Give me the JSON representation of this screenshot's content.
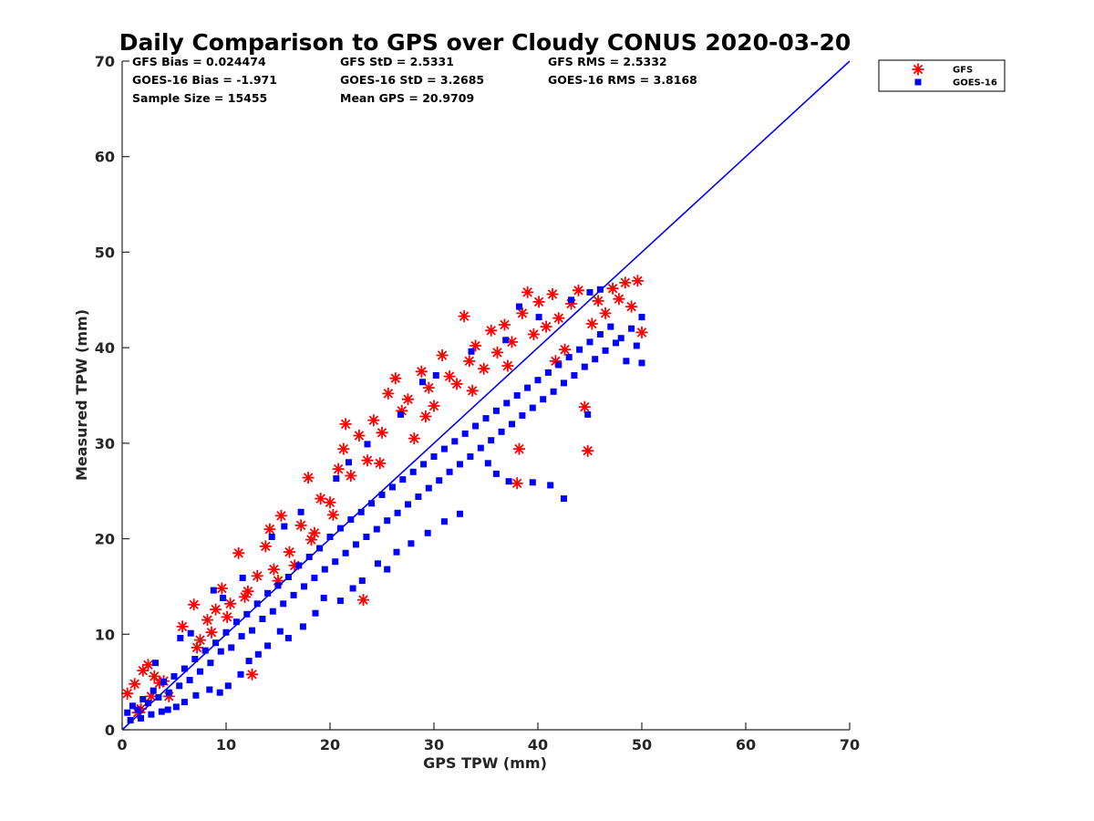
{
  "chart_data": {
    "type": "scatter",
    "title": "Daily Comparison to GPS over Cloudy CONUS 2020-03-20",
    "xlabel": "GPS TPW (mm)",
    "ylabel": "Measured TPW (mm)",
    "xlim": [
      0,
      70
    ],
    "ylim": [
      0,
      70
    ],
    "xticks": [
      "0",
      "10",
      "20",
      "30",
      "40",
      "50",
      "60",
      "70"
    ],
    "yticks": [
      "0",
      "10",
      "20",
      "30",
      "40",
      "50",
      "60",
      "70"
    ],
    "grid": false,
    "legend_position": "outside-top-right",
    "stats": [
      "GFS Bias = 0.024474",
      "GOES-16 Bias = -1.971",
      "Sample Size = 15455",
      "GFS StD = 2.5331",
      "GOES-16 StD = 3.2685",
      "Mean GPS = 20.9709",
      "GFS RMS = 2.5332",
      "GOES-16 RMS = 3.8168"
    ],
    "reference_line": {
      "color": "#0000ff",
      "points": [
        [
          0,
          0
        ],
        [
          70,
          70
        ]
      ]
    },
    "series": [
      {
        "name": "GFS",
        "marker": "asterisk",
        "color": "#ff0000",
        "points": [
          [
            0.5,
            3.8
          ],
          [
            1.2,
            4.8
          ],
          [
            2.0,
            6.2
          ],
          [
            2.5,
            6.8
          ],
          [
            1.8,
            2.2
          ],
          [
            3.1,
            5.6
          ],
          [
            4.0,
            5.1
          ],
          [
            4.5,
            3.5
          ],
          [
            5.8,
            10.8
          ],
          [
            6.9,
            13.1
          ],
          [
            7.5,
            9.4
          ],
          [
            8.2,
            11.5
          ],
          [
            9.0,
            12.6
          ],
          [
            9.6,
            14.8
          ],
          [
            10.4,
            13.2
          ],
          [
            11.2,
            18.5
          ],
          [
            12.1,
            14.5
          ],
          [
            12.5,
            5.8
          ],
          [
            13.0,
            16.1
          ],
          [
            13.8,
            19.2
          ],
          [
            14.2,
            21.0
          ],
          [
            15.0,
            15.6
          ],
          [
            15.3,
            22.4
          ],
          [
            16.1,
            18.6
          ],
          [
            17.2,
            21.4
          ],
          [
            17.9,
            26.4
          ],
          [
            18.5,
            20.6
          ],
          [
            19.1,
            24.2
          ],
          [
            20.0,
            23.8
          ],
          [
            20.8,
            27.3
          ],
          [
            21.5,
            32.0
          ],
          [
            21.3,
            29.4
          ],
          [
            22.0,
            26.6
          ],
          [
            22.8,
            30.8
          ],
          [
            23.2,
            13.6
          ],
          [
            23.6,
            28.2
          ],
          [
            24.2,
            32.4
          ],
          [
            25.0,
            31.1
          ],
          [
            25.6,
            35.2
          ],
          [
            26.3,
            36.8
          ],
          [
            26.9,
            33.4
          ],
          [
            27.5,
            34.6
          ],
          [
            28.1,
            30.5
          ],
          [
            28.8,
            37.5
          ],
          [
            29.5,
            35.8
          ],
          [
            30.0,
            33.9
          ],
          [
            30.8,
            39.2
          ],
          [
            31.5,
            37.0
          ],
          [
            32.2,
            36.2
          ],
          [
            32.9,
            43.3
          ],
          [
            33.4,
            38.6
          ],
          [
            34.0,
            40.2
          ],
          [
            34.8,
            37.8
          ],
          [
            35.5,
            41.8
          ],
          [
            36.1,
            39.5
          ],
          [
            36.8,
            42.4
          ],
          [
            37.5,
            40.6
          ],
          [
            38.0,
            25.8
          ],
          [
            38.2,
            29.4
          ],
          [
            38.5,
            43.6
          ],
          [
            39.0,
            45.8
          ],
          [
            39.6,
            41.4
          ],
          [
            40.1,
            44.8
          ],
          [
            40.8,
            42.2
          ],
          [
            41.4,
            45.6
          ],
          [
            42.0,
            43.1
          ],
          [
            42.6,
            39.8
          ],
          [
            43.2,
            44.6
          ],
          [
            43.9,
            46.0
          ],
          [
            44.5,
            33.8
          ],
          [
            44.8,
            29.2
          ],
          [
            45.2,
            42.5
          ],
          [
            45.8,
            44.9
          ],
          [
            46.5,
            43.6
          ],
          [
            47.2,
            46.2
          ],
          [
            47.8,
            45.1
          ],
          [
            48.4,
            46.8
          ],
          [
            49.0,
            44.3
          ],
          [
            49.6,
            47.0
          ],
          [
            50.0,
            41.6
          ],
          [
            20.3,
            22.5
          ],
          [
            24.8,
            27.9
          ],
          [
            29.2,
            32.8
          ],
          [
            33.7,
            35.5
          ],
          [
            37.1,
            38.1
          ],
          [
            41.7,
            38.6
          ],
          [
            18.2,
            19.9
          ],
          [
            16.6,
            17.2
          ],
          [
            14.6,
            16.8
          ],
          [
            11.8,
            13.9
          ],
          [
            10.1,
            11.8
          ],
          [
            8.6,
            10.2
          ],
          [
            7.2,
            8.6
          ],
          [
            3.6,
            4.9
          ],
          [
            2.8,
            3.5
          ],
          [
            1.5,
            1.8
          ]
        ]
      },
      {
        "name": "GOES-16",
        "marker": "square",
        "color": "#0000ff",
        "points": [
          [
            0.5,
            1.8
          ],
          [
            1.0,
            2.5
          ],
          [
            1.5,
            2.1
          ],
          [
            2.0,
            3.2
          ],
          [
            2.5,
            2.8
          ],
          [
            3.0,
            4.1
          ],
          [
            3.5,
            3.4
          ],
          [
            4.0,
            5.0
          ],
          [
            4.5,
            3.9
          ],
          [
            5.0,
            5.6
          ],
          [
            5.5,
            4.6
          ],
          [
            6.0,
            6.4
          ],
          [
            6.5,
            5.2
          ],
          [
            7.0,
            7.4
          ],
          [
            7.5,
            6.1
          ],
          [
            8.0,
            8.3
          ],
          [
            8.5,
            7.0
          ],
          [
            9.0,
            9.1
          ],
          [
            9.5,
            8.2
          ],
          [
            10.0,
            10.2
          ],
          [
            10.5,
            8.6
          ],
          [
            11.0,
            11.3
          ],
          [
            11.5,
            9.8
          ],
          [
            12.0,
            12.1
          ],
          [
            12.5,
            10.4
          ],
          [
            13.0,
            13.2
          ],
          [
            13.5,
            11.6
          ],
          [
            14.0,
            14.3
          ],
          [
            14.5,
            12.4
          ],
          [
            15.0,
            15.1
          ],
          [
            15.5,
            13.2
          ],
          [
            16.0,
            16.0
          ],
          [
            16.5,
            14.1
          ],
          [
            17.0,
            17.2
          ],
          [
            17.5,
            15.0
          ],
          [
            18.0,
            18.1
          ],
          [
            18.5,
            15.9
          ],
          [
            19.0,
            19.0
          ],
          [
            19.5,
            16.8
          ],
          [
            20.0,
            20.2
          ],
          [
            20.5,
            17.6
          ],
          [
            21.0,
            21.1
          ],
          [
            21.5,
            18.5
          ],
          [
            22.0,
            22.0
          ],
          [
            22.5,
            19.4
          ],
          [
            23.0,
            22.8
          ],
          [
            23.5,
            20.2
          ],
          [
            24.0,
            23.7
          ],
          [
            24.5,
            21.0
          ],
          [
            25.0,
            24.6
          ],
          [
            25.5,
            21.9
          ],
          [
            26.0,
            25.4
          ],
          [
            26.5,
            22.7
          ],
          [
            27.0,
            26.2
          ],
          [
            27.5,
            23.6
          ],
          [
            28.0,
            27.0
          ],
          [
            28.5,
            24.4
          ],
          [
            29.0,
            27.8
          ],
          [
            29.5,
            25.3
          ],
          [
            30.0,
            28.6
          ],
          [
            30.5,
            26.1
          ],
          [
            31.0,
            29.4
          ],
          [
            31.5,
            27.0
          ],
          [
            32.0,
            30.2
          ],
          [
            32.5,
            27.8
          ],
          [
            33.0,
            31.0
          ],
          [
            33.5,
            28.6
          ],
          [
            34.0,
            31.8
          ],
          [
            34.5,
            29.5
          ],
          [
            35.0,
            32.6
          ],
          [
            35.5,
            30.3
          ],
          [
            36.0,
            33.4
          ],
          [
            36.5,
            31.2
          ],
          [
            37.0,
            34.2
          ],
          [
            37.5,
            32.0
          ],
          [
            38.0,
            35.0
          ],
          [
            38.5,
            32.9
          ],
          [
            39.0,
            35.8
          ],
          [
            39.5,
            33.7
          ],
          [
            40.0,
            36.6
          ],
          [
            40.5,
            34.6
          ],
          [
            41.0,
            37.4
          ],
          [
            41.5,
            35.4
          ],
          [
            42.0,
            38.2
          ],
          [
            42.5,
            36.3
          ],
          [
            43.0,
            39.0
          ],
          [
            43.5,
            37.1
          ],
          [
            44.0,
            39.8
          ],
          [
            44.5,
            38.0
          ],
          [
            45.0,
            40.6
          ],
          [
            45.5,
            38.8
          ],
          [
            46.0,
            41.4
          ],
          [
            46.5,
            39.7
          ],
          [
            47.0,
            42.2
          ],
          [
            47.5,
            40.5
          ],
          [
            48.0,
            41.0
          ],
          [
            48.5,
            38.6
          ],
          [
            49.0,
            42.0
          ],
          [
            49.5,
            40.2
          ],
          [
            50.0,
            38.4
          ],
          [
            50.0,
            43.2
          ],
          [
            45.0,
            45.8
          ],
          [
            44.8,
            33.0
          ],
          [
            42.5,
            24.2
          ],
          [
            41.2,
            25.6
          ],
          [
            39.5,
            25.9
          ],
          [
            37.2,
            26.0
          ],
          [
            36.0,
            26.8
          ],
          [
            35.2,
            27.9
          ],
          [
            32.5,
            22.6
          ],
          [
            31.0,
            21.8
          ],
          [
            29.4,
            20.6
          ],
          [
            27.8,
            19.5
          ],
          [
            26.4,
            18.6
          ],
          [
            25.5,
            16.8
          ],
          [
            24.6,
            17.4
          ],
          [
            23.1,
            15.6
          ],
          [
            22.2,
            14.8
          ],
          [
            21.0,
            13.5
          ],
          [
            19.4,
            13.8
          ],
          [
            18.6,
            12.2
          ],
          [
            17.4,
            10.8
          ],
          [
            16.0,
            9.6
          ],
          [
            15.2,
            10.3
          ],
          [
            14.0,
            8.8
          ],
          [
            13.1,
            7.9
          ],
          [
            12.2,
            7.2
          ],
          [
            11.4,
            5.8
          ],
          [
            10.2,
            4.6
          ],
          [
            9.4,
            3.9
          ],
          [
            8.4,
            4.2
          ],
          [
            7.1,
            3.6
          ],
          [
            6.0,
            2.9
          ],
          [
            5.2,
            2.4
          ],
          [
            4.4,
            2.1
          ],
          [
            3.8,
            1.9
          ],
          [
            2.8,
            1.6
          ],
          [
            1.8,
            1.2
          ],
          [
            0.8,
            1.0
          ],
          [
            3.2,
            7.0
          ],
          [
            5.6,
            9.6
          ],
          [
            8.8,
            14.6
          ],
          [
            11.6,
            15.9
          ],
          [
            14.4,
            20.2
          ],
          [
            17.2,
            22.8
          ],
          [
            20.6,
            26.3
          ],
          [
            23.6,
            29.9
          ],
          [
            26.8,
            33.0
          ],
          [
            30.2,
            37.1
          ],
          [
            33.6,
            39.6
          ],
          [
            36.9,
            40.8
          ],
          [
            40.1,
            43.2
          ],
          [
            43.2,
            45.0
          ],
          [
            46.0,
            46.1
          ],
          [
            38.2,
            44.3
          ],
          [
            28.9,
            36.4
          ],
          [
            21.8,
            28.0
          ],
          [
            15.6,
            21.3
          ],
          [
            9.7,
            13.8
          ],
          [
            6.6,
            10.1
          ]
        ]
      }
    ]
  }
}
